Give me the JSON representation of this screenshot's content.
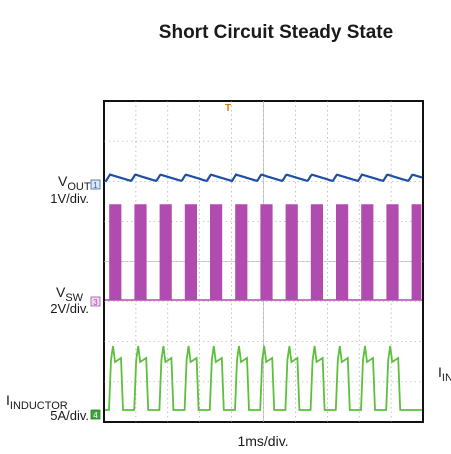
{
  "title": "Short Circuit Steady State",
  "channels": [
    {
      "marker": "1",
      "label": {
        "main": "V",
        "sub": "OUT"
      },
      "scale": "1V/div."
    },
    {
      "marker": "3",
      "label": {
        "main": "V",
        "sub": "SW"
      },
      "scale": "2V/div."
    },
    {
      "marker": "4",
      "label": {
        "main": "I",
        "sub": "INDUCTOR"
      },
      "scale": "5A/div."
    }
  ],
  "trigger": "T",
  "side_label": {
    "main": "I",
    "sub": "IN"
  },
  "time_scale": "1ms/div."
}
